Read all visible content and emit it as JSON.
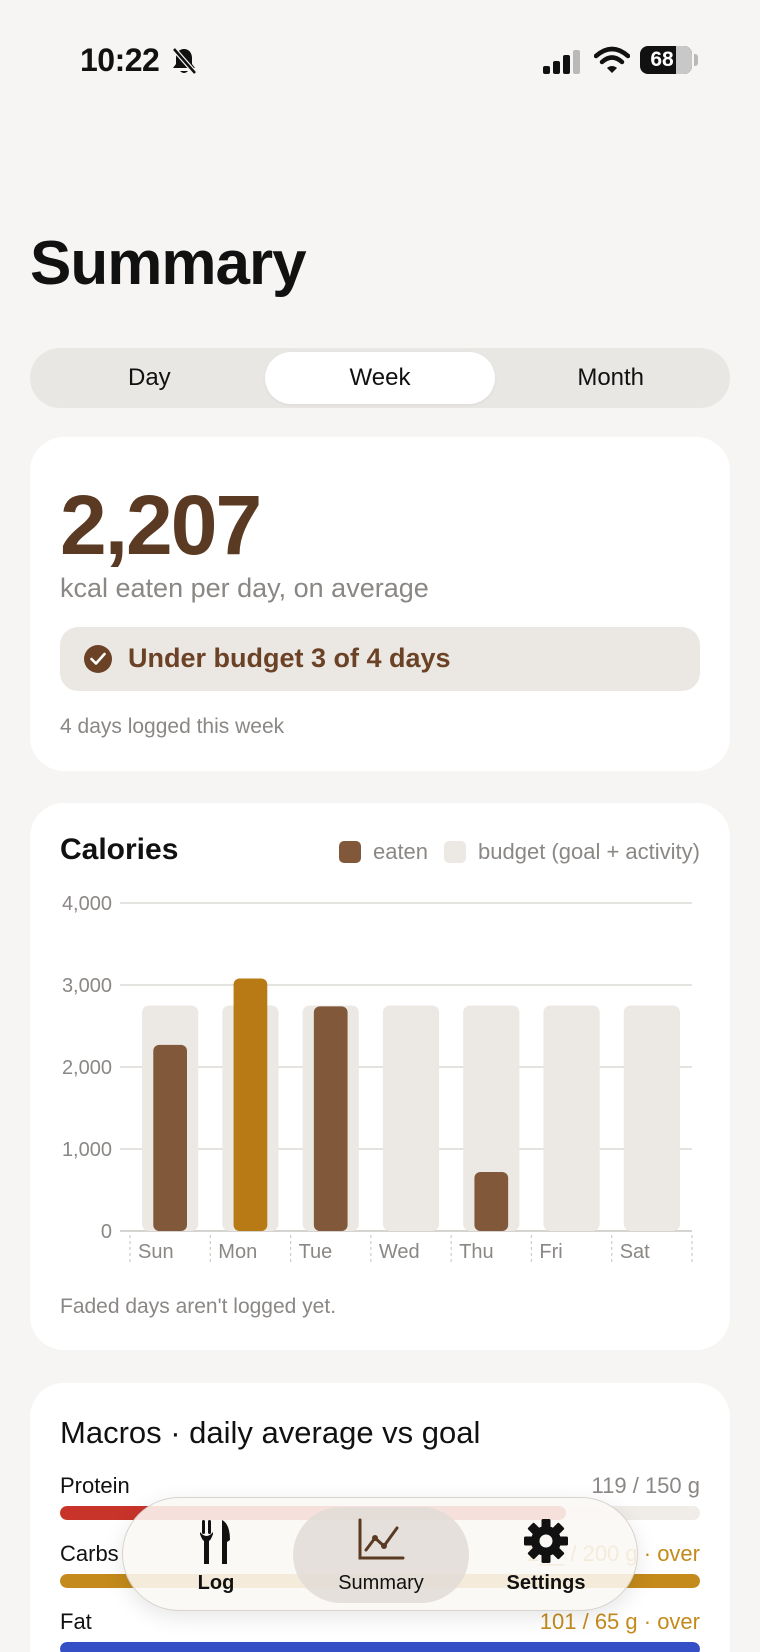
{
  "status_bar": {
    "time": "10:22",
    "battery": "68"
  },
  "page_title": "Summary",
  "segments": [
    {
      "label": "Day",
      "active": false
    },
    {
      "label": "Week",
      "active": true
    },
    {
      "label": "Month",
      "active": false
    }
  ],
  "summary_card": {
    "average": "2,207",
    "caption": "kcal eaten per day, on average",
    "budget_status": "Under budget 3 of 4 days",
    "days_logged": "4 days logged this week"
  },
  "chart_card": {
    "note": "Faded days aren't logged yet."
  },
  "chart_data": {
    "type": "bar",
    "title": "Calories",
    "categories": [
      "Sun",
      "Mon",
      "Tue",
      "Wed",
      "Thu",
      "Fri",
      "Sat"
    ],
    "series": [
      {
        "name": "eaten",
        "values": [
          2270,
          3080,
          2740,
          null,
          720,
          null,
          null
        ]
      },
      {
        "name": "budget (goal + activity)",
        "values": [
          2750,
          2750,
          2750,
          2750,
          2750,
          2750,
          2750
        ]
      }
    ],
    "over_budget_days": [
      "Mon"
    ],
    "ylim": [
      0,
      4000
    ],
    "yticks": [
      0,
      1000,
      2000,
      3000,
      4000
    ],
    "ytick_labels": [
      "0",
      "1,000",
      "2,000",
      "3,000",
      "4,000"
    ],
    "grid": true,
    "legend_position": "top-right",
    "colors": {
      "eaten": "#82583a",
      "over": "#b87a14",
      "budget": "#ece8e4"
    }
  },
  "macros_card": {
    "title": "Macros · daily average vs goal",
    "items": [
      {
        "label": "Protein",
        "value": "119 / 150 g",
        "over": false,
        "fraction": 0.79,
        "color": "#c8332a"
      },
      {
        "label": "Carbs",
        "value": "2__ / 200 g · over",
        "over": true,
        "fraction": 1.0,
        "color": "#c48a1b"
      },
      {
        "label": "Fat",
        "value": "101 / 65 g · over",
        "over": true,
        "fraction": 1.0,
        "color": "#3550c7"
      }
    ]
  },
  "tab_bar": {
    "items": [
      {
        "label": "Log",
        "icon": "fork-knife-icon"
      },
      {
        "label": "Summary",
        "icon": "chart-line-icon",
        "active": true
      },
      {
        "label": "Settings",
        "icon": "gear-icon"
      }
    ]
  }
}
